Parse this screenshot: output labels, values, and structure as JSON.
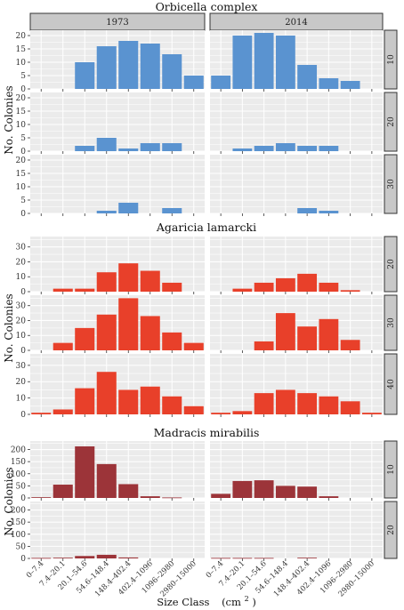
{
  "figure": {
    "ylabel": "No. Colonies",
    "xlabel_main": "Size Class",
    "xlabel_unit": "(cm",
    "xlabel_sup": "2",
    "xlabel_close": ")",
    "year_labels": [
      "1973",
      "2014"
    ],
    "size_classes": [
      "0–7.4",
      "7.4–20.1",
      "20.1–54.6",
      "54.6–148.4",
      "148.4–402.4",
      "402.4–1096",
      "1096–2980",
      "2980–15000"
    ]
  },
  "colors": {
    "orbicella": "#5a93d0",
    "agaricia": "#e8402a",
    "madracis": "#9c3439",
    "panel_bg": "#ebebeb",
    "grid": "#ffffff",
    "strip": "#c8c8c8"
  },
  "chart_data": [
    {
      "type": "bar",
      "title": "Orbicella complex",
      "color_key": "orbicella",
      "categories": [
        "0–7.4",
        "7.4–20.1",
        "20.1–54.6",
        "54.6–148.4",
        "148.4–402.4",
        "402.4–1096",
        "1096–2980",
        "2980–15000"
      ],
      "ylim": [
        0,
        22
      ],
      "yticks": [
        0,
        5,
        10,
        15,
        20
      ],
      "columns": [
        "1973",
        "2014"
      ],
      "rows": [
        {
          "depth": "10",
          "1973": [
            0,
            0,
            10,
            16,
            18,
            17,
            13,
            5
          ],
          "2014": [
            5,
            20,
            21,
            20,
            9,
            4,
            3,
            0
          ]
        },
        {
          "depth": "20",
          "1973": [
            0,
            0,
            2,
            5,
            1,
            3,
            3,
            0
          ],
          "2014": [
            0,
            1,
            2,
            3,
            2,
            2,
            0,
            0
          ]
        },
        {
          "depth": "30",
          "1973": [
            0,
            0,
            0,
            1,
            4,
            0,
            2,
            0
          ],
          "2014": [
            0,
            0,
            0,
            0,
            2,
            1,
            0,
            0
          ]
        }
      ]
    },
    {
      "type": "bar",
      "title": "Agaricia lamarcki",
      "color_key": "agaricia",
      "categories": [
        "0–7.4",
        "7.4–20.1",
        "20.1–54.6",
        "54.6–148.4",
        "148.4–402.4",
        "402.4–1096",
        "1096–2980",
        "2980–15000"
      ],
      "ylim": [
        0,
        37
      ],
      "yticks": [
        0,
        10,
        20,
        30
      ],
      "columns": [
        "1973",
        "2014"
      ],
      "rows": [
        {
          "depth": "20",
          "1973": [
            0,
            2,
            2,
            13,
            19,
            14,
            6,
            0
          ],
          "2014": [
            0,
            2,
            6,
            9,
            12,
            6,
            1,
            0
          ]
        },
        {
          "depth": "30",
          "1973": [
            0,
            5,
            15,
            24,
            35,
            23,
            12,
            5
          ],
          "2014": [
            0,
            0,
            6,
            25,
            16,
            21,
            7,
            0
          ]
        },
        {
          "depth": "40",
          "1973": [
            1,
            3,
            16,
            26,
            15,
            17,
            11,
            5
          ],
          "2014": [
            1,
            2,
            13,
            15,
            13,
            11,
            8,
            1
          ]
        }
      ]
    },
    {
      "type": "bar",
      "title": "Madracis mirabilis",
      "color_key": "madracis",
      "categories": [
        "0–7.4",
        "7.4–20.1",
        "20.1–54.6",
        "54.6–148.4",
        "148.4–402.4",
        "402.4–1096",
        "1096–2980",
        "2980–15000"
      ],
      "ylim": [
        0,
        235
      ],
      "yticks": [
        0,
        50,
        100,
        150,
        200
      ],
      "columns": [
        "1973",
        "2014"
      ],
      "rows": [
        {
          "depth": "10",
          "1973": [
            3,
            55,
            213,
            140,
            57,
            7,
            2,
            0
          ],
          "2014": [
            17,
            70,
            73,
            50,
            47,
            7,
            0,
            0
          ]
        },
        {
          "depth": "20",
          "1973": [
            2,
            3,
            10,
            15,
            4,
            0,
            0,
            0
          ],
          "2014": [
            2,
            2,
            2,
            0,
            3,
            0,
            0,
            0
          ]
        }
      ]
    }
  ]
}
